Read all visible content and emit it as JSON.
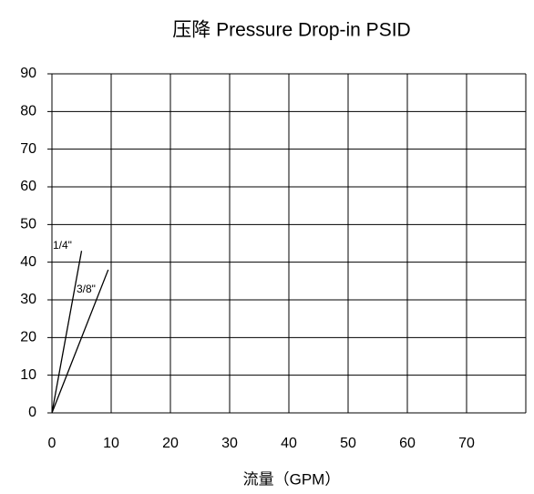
{
  "chart_data": {
    "type": "line",
    "title": "压降 Pressure Drop-in PSID",
    "x_label": "流量（GPM）",
    "series": [
      {
        "name": "1/4\"",
        "color": "#000000",
        "x": [
          0,
          5
        ],
        "values": [
          0,
          43
        ]
      },
      {
        "name": "3/8\"",
        "color": "#000000",
        "x": [
          0,
          9.5
        ],
        "values": [
          0,
          38
        ]
      }
    ],
    "xlim": [
      0,
      80
    ],
    "xticks": [
      0,
      10,
      20,
      30,
      40,
      50,
      60,
      70
    ],
    "ylim": [
      0,
      90
    ],
    "yticks": [
      0,
      10,
      20,
      30,
      40,
      50,
      60,
      70,
      80,
      90
    ],
    "grid": true
  }
}
